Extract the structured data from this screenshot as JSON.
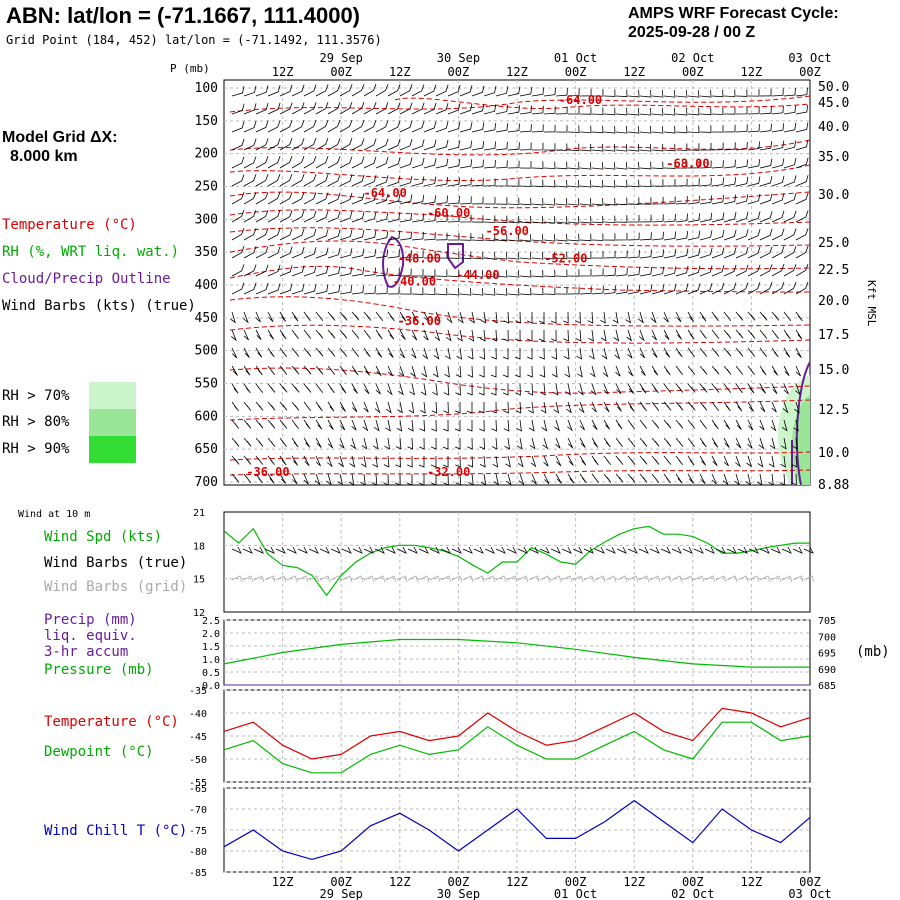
{
  "header": {
    "station_title": "ABN:  lat/lon = (-71.1667, 111.4000)",
    "grid_point": "Grid Point (184, 452) lat/lon = (-71.1492, 111.3576)",
    "cycle_line1": "AMPS WRF Forecast Cycle:",
    "cycle_line2": "2025-09-28 / 00  Z"
  },
  "model_grid": {
    "line1": "Model Grid ΔX:",
    "line2": "8.000 km"
  },
  "legend_upper": {
    "temperature": "Temperature (°C)",
    "rh": "RH (%, WRT liq. wat.)",
    "cloud": "Cloud/Precip Outline",
    "wind": "Wind Barbs (kts) (true)",
    "rh70": "RH > 70%",
    "rh80": "RH > 80%",
    "rh90": "RH > 90%"
  },
  "legend_wind10": {
    "title": "Wind at 10 m",
    "speed": "Wind Spd (kts)",
    "barbs_true": "Wind Barbs (true)",
    "barbs_grid": "Wind Barbs (grid)"
  },
  "legend_precip": {
    "l1": "Precip (mm)",
    "l2": "liq. equiv.",
    "l3": "3-hr accum",
    "l4": "Pressure (mb)",
    "unit_right": "(mb)"
  },
  "legend_temp": {
    "temperature": "Temperature (°C)",
    "dewpoint": "Dewpoint (°C)"
  },
  "legend_windchill": {
    "label": "Wind Chill T (°C)"
  },
  "axes": {
    "p_label": "P (mb)",
    "kft_label": "Kft MSL",
    "time_hours": [
      "12Z",
      "00Z",
      "12Z",
      "00Z",
      "12Z",
      "00Z",
      "12Z",
      "00Z",
      "12Z",
      "00Z"
    ],
    "time_dates": [
      "29 Sep",
      "30 Sep",
      "01 Oct",
      "02 Oct",
      "03 Oct"
    ],
    "pressure_ticks": [
      "100",
      "150",
      "200",
      "250",
      "300",
      "350",
      "400",
      "450",
      "500",
      "550",
      "600",
      "650",
      "700"
    ],
    "height_ticks": [
      "50.0",
      "45.0",
      "40.0",
      "35.0",
      "30.0",
      "25.0",
      "22.5",
      "20.0",
      "17.5",
      "15.0",
      "12.5",
      "10.0",
      "8.88"
    ],
    "wind_ticks": [
      "21",
      "18",
      "15",
      "12"
    ],
    "precip_ticks": [
      "2.5",
      "2.0",
      "1.5",
      "1.0",
      "0.5",
      "0.0"
    ],
    "press_ticks": [
      "705",
      "700",
      "695",
      "690",
      "685"
    ],
    "temp_ticks": [
      "-35",
      "-40",
      "-45",
      "-50",
      "-55"
    ],
    "chill_ticks": [
      "-65",
      "-70",
      "-75",
      "-80",
      "-85"
    ]
  },
  "colors": {
    "temperature": "#dd0000",
    "rh_outline": "#00bb00",
    "cloud": "#6a1b9a",
    "wind": "#000000",
    "wind_grid": "#aaaaaa",
    "rh70": "#ccf5cc",
    "rh80": "#99e699",
    "rh90": "#33dd33",
    "windchill": "#0000bb",
    "grid": "#bbbbbb"
  },
  "chart_data": [
    {
      "type": "contour-cross-section",
      "x_hours": [
        0,
        120
      ],
      "y_pressure_mb": [
        100,
        700
      ],
      "isotherm_labels": [
        {
          "text": "-64.00",
          "hour": 73,
          "p": 118
        },
        {
          "text": "-68.00",
          "hour": 95,
          "p": 215
        },
        {
          "text": "-64.00",
          "hour": 33,
          "p": 260
        },
        {
          "text": "-60.00",
          "hour": 46,
          "p": 290
        },
        {
          "text": "-56.00",
          "hour": 58,
          "p": 318
        },
        {
          "text": "-52.00",
          "hour": 70,
          "p": 360
        },
        {
          "text": "-48.00",
          "hour": 40,
          "p": 360
        },
        {
          "text": "-44.00",
          "hour": 52,
          "p": 385
        },
        {
          "text": "-40.00",
          "hour": 39,
          "p": 395
        },
        {
          "text": "-36.00",
          "hour": 40,
          "p": 455
        },
        {
          "text": "-36.00",
          "hour": 9,
          "p": 685
        },
        {
          "text": "-32.00",
          "hour": 46,
          "p": 685
        }
      ]
    },
    {
      "type": "line",
      "title": "Wind at 10 m",
      "x_hours": [
        0,
        3,
        6,
        9,
        12,
        15,
        18,
        21,
        24,
        27,
        30,
        33,
        36,
        39,
        42,
        45,
        48,
        51,
        54,
        57,
        60,
        63,
        66,
        69,
        72,
        75,
        78,
        81,
        84,
        87,
        90,
        93,
        96,
        99,
        102,
        105,
        108,
        111,
        114,
        117,
        120
      ],
      "ylim": [
        12,
        21
      ],
      "series": [
        {
          "name": "Wind Spd (kts)",
          "values": [
            19.3,
            18.2,
            19.5,
            17.2,
            16.2,
            16.0,
            15.3,
            13.5,
            15.3,
            16.5,
            17.3,
            17.8,
            18.0,
            18.0,
            17.8,
            17.5,
            17.0,
            16.2,
            15.5,
            16.5,
            16.5,
            17.8,
            17.2,
            16.5,
            16.3,
            17.5,
            18.3,
            19.0,
            19.5,
            19.7,
            19.0,
            19.0,
            18.8,
            18.2,
            17.3,
            17.3,
            17.5,
            17.8,
            18.0,
            18.2,
            18.2
          ]
        }
      ]
    },
    {
      "type": "line",
      "x_hours": [
        0,
        12,
        24,
        36,
        48,
        60,
        72,
        84,
        96,
        108,
        120
      ],
      "series": [
        {
          "name": "Precip (mm)",
          "axis": "left",
          "ylim": [
            0,
            2.5
          ],
          "values": [
            0,
            0,
            0,
            0,
            0,
            0,
            0,
            0,
            0,
            0,
            0
          ]
        },
        {
          "name": "Pressure (mb)",
          "axis": "right",
          "ylim": [
            685,
            705
          ],
          "values": [
            691.5,
            695.0,
            697.5,
            699.0,
            699.0,
            698.0,
            696.0,
            693.5,
            691.5,
            690.5,
            690.5
          ]
        }
      ]
    },
    {
      "type": "line",
      "x_hours": [
        0,
        6,
        12,
        18,
        24,
        30,
        36,
        42,
        48,
        54,
        60,
        66,
        72,
        78,
        84,
        90,
        96,
        102,
        108,
        114,
        120
      ],
      "ylim": [
        -55,
        -35
      ],
      "series": [
        {
          "name": "Temperature (°C)",
          "values": [
            -44,
            -42,
            -47,
            -50,
            -49,
            -45,
            -44,
            -46,
            -45,
            -40,
            -44,
            -47,
            -46,
            -43,
            -40,
            -44,
            -46,
            -39,
            -40,
            -43,
            -41
          ]
        },
        {
          "name": "Dewpoint (°C)",
          "values": [
            -48,
            -46,
            -51,
            -53,
            -53,
            -49,
            -47,
            -49,
            -48,
            -43,
            -47,
            -50,
            -50,
            -47,
            -44,
            -48,
            -50,
            -42,
            -42,
            -46,
            -45
          ]
        }
      ]
    },
    {
      "type": "line",
      "x_hours": [
        0,
        6,
        12,
        18,
        24,
        30,
        36,
        42,
        48,
        54,
        60,
        66,
        72,
        78,
        84,
        90,
        96,
        102,
        108,
        114,
        120
      ],
      "ylim": [
        -85,
        -65
      ],
      "series": [
        {
          "name": "Wind Chill T (°C)",
          "values": [
            -79,
            -75,
            -80,
            -82,
            -80,
            -74,
            -71,
            -75,
            -80,
            -75,
            -70,
            -77,
            -77,
            -73,
            -68,
            -73,
            -78,
            -70,
            -75,
            -78,
            -72
          ]
        }
      ]
    }
  ]
}
